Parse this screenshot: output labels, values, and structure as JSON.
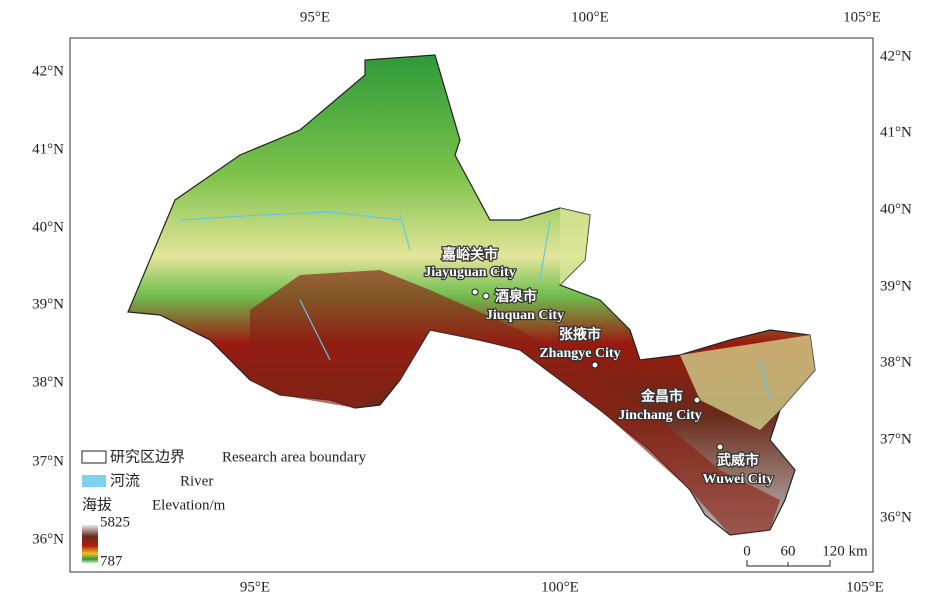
{
  "graticule": {
    "top": [
      "95°E",
      "100°E",
      "105°E"
    ],
    "bottom": [
      "95°E",
      "100°E",
      "105°E"
    ],
    "left": [
      "42°N",
      "41°N",
      "40°N",
      "39°N",
      "38°N",
      "37°N",
      "36°N"
    ],
    "right": [
      "42°N",
      "41°N",
      "40°N",
      "39°N",
      "38°N",
      "37°N",
      "36°N"
    ]
  },
  "cities": [
    {
      "zh": "嘉峪关市",
      "en": "Jiayuguan City"
    },
    {
      "zh": "酒泉市",
      "en": "Jiuquan City"
    },
    {
      "zh": "张掖市",
      "en": "Zhangye City"
    },
    {
      "zh": "金昌市",
      "en": "Jinchang City"
    },
    {
      "zh": "武威市",
      "en": "Wuwei City"
    }
  ],
  "legend": {
    "boundary": {
      "zh": "研究区边界",
      "en": "Research area boundary"
    },
    "river": {
      "zh": "河流",
      "en": "River"
    },
    "elevation": {
      "zh": "海拔",
      "en": "Elevation/m",
      "max": "5825",
      "min": "787"
    }
  },
  "scale": {
    "labels": [
      "0",
      "60",
      "120 km"
    ]
  }
}
